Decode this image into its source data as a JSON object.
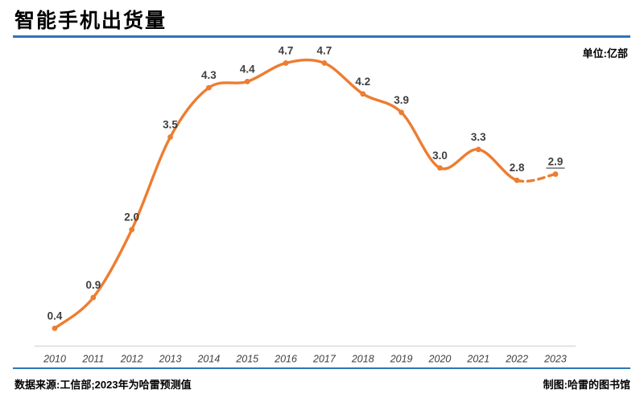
{
  "header": {
    "title": "智能手机出货量",
    "unit_label": "单位:亿部"
  },
  "chart_data": {
    "type": "line",
    "title": "智能手机出货量",
    "categories": [
      "2010",
      "2011",
      "2012",
      "2013",
      "2014",
      "2015",
      "2016",
      "2017",
      "2018",
      "2019",
      "2020",
      "2021",
      "2022",
      "2023"
    ],
    "values": [
      0.4,
      0.9,
      2.0,
      3.5,
      4.3,
      4.4,
      4.7,
      4.7,
      4.2,
      3.9,
      3.0,
      3.3,
      2.8,
      2.9
    ],
    "labels": [
      "0.4",
      "0.9",
      "2.0",
      "3.5",
      "4.3",
      "4.4",
      "4.7",
      "4.7",
      "4.2",
      "3.9",
      "3.0",
      "3.3",
      "2.8",
      "2.9"
    ],
    "unit": "亿部",
    "ylim": [
      0,
      5.1
    ],
    "grid": false,
    "legend": "none",
    "smooth": true,
    "markers": true,
    "line_color": "#ED7D31",
    "axis_line_color": "#D9D9D9",
    "dashed_from_index": 12,
    "forecast_index": 13,
    "forecast_label_underlined": true
  },
  "footer": {
    "source": "数据来源:工信部;2023年为哈雷预测值",
    "credit": "制图:哈雷的图书馆"
  },
  "theme": {
    "accent_blue": "#2E75B6",
    "label_color": "#3F3F3F",
    "tick_color": "#404040"
  }
}
